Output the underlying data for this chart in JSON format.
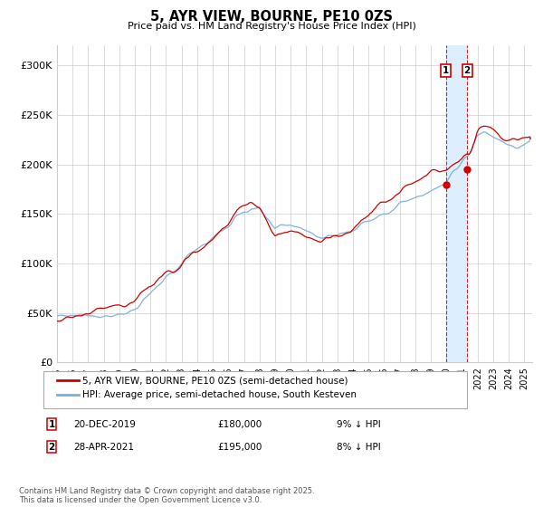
{
  "title": "5, AYR VIEW, BOURNE, PE10 0ZS",
  "subtitle": "Price paid vs. HM Land Registry's House Price Index (HPI)",
  "legend1": "5, AYR VIEW, BOURNE, PE10 0ZS (semi-detached house)",
  "legend2": "HPI: Average price, semi-detached house, South Kesteven",
  "annotation1_date": "20-DEC-2019",
  "annotation1_price": 180000,
  "annotation1_pct": "9% ↓ HPI",
  "annotation2_date": "28-APR-2021",
  "annotation2_price": 195000,
  "annotation2_pct": "8% ↓ HPI",
  "line1_color": "#cc0000",
  "line2_color": "#7bafd4",
  "dot_color": "#cc0000",
  "highlight_color": "#ddeeff",
  "dashed_line_color": "#cc0000",
  "grid_color": "#cccccc",
  "background_color": "#ffffff",
  "footer": "Contains HM Land Registry data © Crown copyright and database right 2025.\nThis data is licensed under the Open Government Licence v3.0.",
  "ylim": [
    0,
    320000
  ],
  "yticks": [
    0,
    50000,
    100000,
    150000,
    200000,
    250000,
    300000
  ],
  "ytick_labels": [
    "£0",
    "£50K",
    "£100K",
    "£150K",
    "£200K",
    "£250K",
    "£300K"
  ],
  "sale1_year": 2019.97,
  "sale2_year": 2021.33,
  "sale1_price": 180000,
  "sale2_price": 195000
}
